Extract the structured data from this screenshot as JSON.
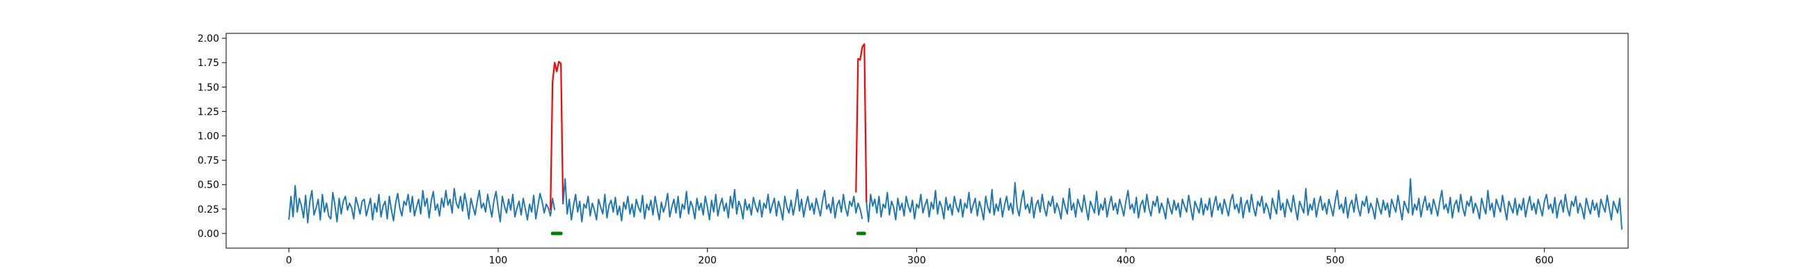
{
  "chart_data": {
    "type": "line",
    "title": "",
    "xlabel": "",
    "ylabel": "",
    "xlim": [
      -30,
      640
    ],
    "ylim": [
      -0.15,
      2.05
    ],
    "grid": false,
    "xticks": [
      0,
      100,
      200,
      300,
      400,
      500,
      600
    ],
    "xtick_labels": [
      "0",
      "100",
      "200",
      "300",
      "400",
      "500",
      "600"
    ],
    "yticks": [
      0.0,
      0.25,
      0.5,
      0.75,
      1.0,
      1.25,
      1.5,
      1.75,
      2.0
    ],
    "ytick_labels": [
      "0.00",
      "0.25",
      "0.50",
      "0.75",
      "1.00",
      "1.25",
      "1.50",
      "1.75",
      "2.00"
    ],
    "series": [
      {
        "role": "signal",
        "color": "#1f77b4",
        "x_start": 0,
        "x_step": 1,
        "values": [
          0.14,
          0.38,
          0.17,
          0.49,
          0.22,
          0.36,
          0.28,
          0.16,
          0.39,
          0.11,
          0.33,
          0.44,
          0.19,
          0.26,
          0.35,
          0.14,
          0.4,
          0.22,
          0.31,
          0.18,
          0.15,
          0.42,
          0.29,
          0.12,
          0.36,
          0.2,
          0.33,
          0.38,
          0.24,
          0.31,
          0.26,
          0.15,
          0.37,
          0.29,
          0.2,
          0.33,
          0.35,
          0.18,
          0.27,
          0.36,
          0.14,
          0.31,
          0.22,
          0.4,
          0.17,
          0.28,
          0.33,
          0.15,
          0.38,
          0.24,
          0.13,
          0.31,
          0.41,
          0.26,
          0.18,
          0.33,
          0.29,
          0.4,
          0.22,
          0.38,
          0.18,
          0.27,
          0.35,
          0.2,
          0.44,
          0.28,
          0.36,
          0.16,
          0.33,
          0.43,
          0.24,
          0.3,
          0.18,
          0.36,
          0.27,
          0.44,
          0.29,
          0.35,
          0.21,
          0.46,
          0.31,
          0.26,
          0.38,
          0.23,
          0.41,
          0.3,
          0.15,
          0.36,
          0.27,
          0.19,
          0.33,
          0.44,
          0.26,
          0.31,
          0.22,
          0.4,
          0.28,
          0.17,
          0.34,
          0.43,
          0.26,
          0.12,
          0.38,
          0.28,
          0.21,
          0.35,
          0.24,
          0.4,
          0.17,
          0.26,
          0.33,
          0.19,
          0.36,
          0.25,
          0.14,
          0.3,
          0.22,
          0.39,
          0.15,
          0.28,
          0.41,
          0.33,
          0.21,
          0.3,
          0.26,
          0.18,
          0.36,
          0.24
        ],
        "segments_note": null
      }
    ],
    "segments": [
      {
        "role": "signal",
        "color": "#1f77b4",
        "x_start": 0,
        "x_step": 1,
        "values": [
          0.14,
          0.38,
          0.17,
          0.49,
          0.22,
          0.36,
          0.28,
          0.16,
          0.39,
          0.11,
          0.33,
          0.44,
          0.19,
          0.26,
          0.35,
          0.14,
          0.4,
          0.22,
          0.31,
          0.18,
          0.15,
          0.42,
          0.29,
          0.12,
          0.36,
          0.2,
          0.33,
          0.38,
          0.24,
          0.31,
          0.26,
          0.15,
          0.37,
          0.29,
          0.2,
          0.33,
          0.35,
          0.18,
          0.27,
          0.36,
          0.14,
          0.31,
          0.22,
          0.4,
          0.17,
          0.28,
          0.33,
          0.15,
          0.38,
          0.24,
          0.13,
          0.31,
          0.41,
          0.26,
          0.18,
          0.33,
          0.29,
          0.4,
          0.22,
          0.38,
          0.18,
          0.27,
          0.35,
          0.2,
          0.44,
          0.28,
          0.36,
          0.16,
          0.33,
          0.43,
          0.24,
          0.3,
          0.18,
          0.36,
          0.27,
          0.44,
          0.29,
          0.35,
          0.21,
          0.46,
          0.31,
          0.26,
          0.38,
          0.23,
          0.41,
          0.3,
          0.15,
          0.36,
          0.27,
          0.19,
          0.33,
          0.44,
          0.26,
          0.31,
          0.22,
          0.4,
          0.28,
          0.17,
          0.34,
          0.43,
          0.26,
          0.12,
          0.38,
          0.28,
          0.21,
          0.35,
          0.24,
          0.4,
          0.17,
          0.26,
          0.33,
          0.19,
          0.36,
          0.25,
          0.14,
          0.3,
          0.22,
          0.39,
          0.15,
          0.28,
          0.41,
          0.33,
          0.21,
          0.3,
          0.26,
          0.18,
          0.36,
          0.24
        ]
      },
      {
        "role": "anomaly",
        "color": "#ff0000",
        "x_start": 125,
        "x_step": 1,
        "values": [
          0.24,
          1.55,
          1.75,
          1.66,
          1.76,
          1.74,
          0.3
        ]
      },
      {
        "role": "signal",
        "color": "#1f77b4",
        "x_start": 131,
        "x_step": 1,
        "values": [
          0.3,
          0.56,
          0.2,
          0.35,
          0.14,
          0.28,
          0.4,
          0.22,
          0.33,
          0.12,
          0.3,
          0.26,
          0.38,
          0.18,
          0.31,
          0.24,
          0.14,
          0.35,
          0.27,
          0.2,
          0.4,
          0.16,
          0.29,
          0.34,
          0.22,
          0.37,
          0.19,
          0.28,
          0.13,
          0.32,
          0.25,
          0.38,
          0.2,
          0.3,
          0.17,
          0.35,
          0.27,
          0.22,
          0.39,
          0.15,
          0.3,
          0.24,
          0.34,
          0.19,
          0.38,
          0.26,
          0.14,
          0.32,
          0.22,
          0.29,
          0.41,
          0.17,
          0.27,
          0.35,
          0.21,
          0.38,
          0.16,
          0.3,
          0.25,
          0.43,
          0.2,
          0.33,
          0.27,
          0.15,
          0.36,
          0.24,
          0.31,
          0.19,
          0.38,
          0.27,
          0.14,
          0.34,
          0.22,
          0.4,
          0.18,
          0.29,
          0.36,
          0.23,
          0.31,
          0.16,
          0.38,
          0.26,
          0.45,
          0.2,
          0.33,
          0.27,
          0.15,
          0.35,
          0.24,
          0.3,
          0.19,
          0.37,
          0.28,
          0.22,
          0.34,
          0.17,
          0.31,
          0.26,
          0.4,
          0.21,
          0.29,
          0.36,
          0.18,
          0.33,
          0.25,
          0.14,
          0.38,
          0.27,
          0.21,
          0.34,
          0.19,
          0.3,
          0.45,
          0.23,
          0.35,
          0.17,
          0.29,
          0.38,
          0.24,
          0.31,
          0.2,
          0.36,
          0.27,
          0.18,
          0.33,
          0.44,
          0.25,
          0.3,
          0.21,
          0.37,
          0.16,
          0.29,
          0.34,
          0.22,
          0.4,
          0.26,
          0.18,
          0.33,
          0.28,
          0.38,
          0.21,
          0.31,
          0.25,
          0.15
        ]
      },
      {
        "role": "anomaly",
        "color": "#ff0000",
        "x_start": 271,
        "x_step": 1,
        "values": [
          0.42,
          1.79,
          1.78,
          1.91,
          1.94,
          0.32
        ]
      },
      {
        "role": "signal",
        "color": "#1f77b4",
        "x_start": 276,
        "x_step": 1,
        "values": [
          0.32,
          0.12,
          0.4,
          0.28,
          0.35,
          0.21,
          0.38,
          0.17,
          0.3,
          0.26,
          0.42,
          0.19,
          0.33,
          0.27,
          0.14,
          0.36,
          0.24,
          0.31,
          0.18,
          0.38,
          0.28,
          0.22,
          0.34,
          0.15,
          0.3,
          0.26,
          0.4,
          0.21,
          0.29,
          0.35,
          0.17,
          0.32,
          0.25,
          0.44,
          0.2,
          0.33,
          0.27,
          0.15,
          0.37,
          0.24,
          0.3,
          0.19,
          0.38,
          0.28,
          0.22,
          0.35,
          0.17,
          0.31,
          0.26,
          0.42,
          0.21,
          0.29,
          0.36,
          0.18,
          0.33,
          0.25,
          0.14,
          0.38,
          0.27,
          0.21,
          0.45,
          0.19,
          0.3,
          0.23,
          0.36,
          0.17,
          0.29,
          0.38,
          0.24,
          0.31,
          0.2,
          0.52,
          0.27,
          0.18,
          0.33,
          0.44,
          0.25,
          0.3,
          0.21,
          0.37,
          0.16,
          0.29,
          0.34,
          0.22,
          0.4,
          0.26,
          0.18,
          0.33,
          0.28,
          0.38,
          0.21,
          0.31,
          0.25,
          0.15,
          0.36,
          0.27,
          0.2,
          0.46,
          0.24,
          0.31,
          0.17,
          0.35,
          0.28,
          0.22,
          0.39,
          0.26,
          0.14,
          0.33,
          0.27,
          0.21,
          0.43,
          0.19,
          0.3,
          0.24,
          0.36,
          0.17,
          0.29,
          0.38,
          0.24,
          0.31,
          0.2,
          0.35,
          0.27,
          0.18,
          0.33,
          0.44,
          0.25,
          0.3,
          0.21,
          0.37,
          0.16,
          0.29,
          0.34,
          0.22,
          0.4,
          0.26,
          0.18,
          0.33,
          0.28,
          0.38,
          0.21,
          0.31,
          0.25,
          0.15,
          0.36,
          0.27,
          0.2,
          0.34,
          0.24,
          0.31,
          0.17,
          0.35,
          0.28,
          0.22,
          0.39,
          0.26,
          0.14,
          0.33,
          0.27,
          0.21,
          0.36,
          0.19,
          0.3,
          0.24,
          0.36,
          0.17,
          0.29,
          0.38,
          0.24,
          0.31,
          0.2,
          0.35,
          0.27,
          0.18,
          0.33,
          0.4,
          0.25,
          0.3,
          0.21,
          0.37,
          0.16,
          0.29,
          0.34,
          0.22,
          0.4,
          0.26,
          0.18,
          0.33,
          0.28,
          0.38,
          0.21,
          0.31,
          0.25,
          0.15,
          0.36,
          0.27,
          0.2,
          0.44,
          0.24,
          0.31,
          0.17,
          0.35,
          0.28,
          0.22,
          0.39,
          0.26,
          0.14,
          0.33,
          0.27,
          0.21,
          0.46,
          0.19,
          0.3,
          0.24,
          0.36,
          0.17,
          0.29,
          0.38,
          0.24,
          0.31,
          0.2,
          0.35,
          0.27,
          0.18,
          0.33,
          0.44,
          0.25,
          0.3,
          0.21,
          0.37,
          0.16,
          0.29,
          0.34,
          0.22,
          0.4,
          0.26,
          0.18,
          0.33,
          0.28,
          0.38,
          0.21,
          0.31,
          0.25,
          0.15,
          0.36,
          0.27,
          0.2,
          0.34,
          0.24,
          0.31,
          0.17,
          0.35,
          0.28,
          0.22,
          0.39,
          0.26,
          0.14,
          0.33,
          0.27,
          0.21,
          0.56,
          0.19,
          0.3,
          0.24,
          0.36,
          0.17,
          0.29,
          0.38,
          0.24,
          0.31,
          0.2,
          0.35,
          0.27,
          0.18,
          0.33,
          0.44,
          0.25,
          0.3,
          0.21,
          0.37,
          0.16,
          0.29,
          0.34,
          0.22,
          0.4,
          0.26,
          0.18,
          0.33,
          0.28,
          0.38,
          0.21,
          0.31,
          0.25,
          0.15,
          0.36,
          0.27,
          0.2,
          0.44,
          0.24,
          0.31,
          0.17,
          0.35,
          0.28,
          0.22,
          0.39,
          0.26,
          0.14,
          0.33,
          0.27,
          0.21,
          0.36,
          0.19,
          0.3,
          0.24,
          0.36,
          0.17,
          0.29,
          0.38,
          0.24,
          0.31,
          0.2,
          0.35,
          0.27,
          0.18,
          0.33,
          0.4,
          0.25,
          0.3,
          0.21,
          0.37,
          0.16,
          0.29,
          0.34,
          0.22,
          0.4,
          0.26,
          0.18,
          0.33,
          0.28,
          0.38,
          0.21,
          0.31,
          0.25,
          0.15,
          0.36,
          0.27,
          0.2,
          0.34,
          0.24,
          0.31,
          0.17,
          0.35,
          0.28,
          0.22,
          0.39,
          0.26,
          0.14,
          0.33,
          0.27,
          0.21,
          0.36,
          0.04
        ]
      }
    ],
    "markers": [
      {
        "role": "anomaly-window",
        "color": "#008000",
        "x0": 126,
        "x1": 130,
        "y": 0.0
      },
      {
        "role": "anomaly-window",
        "color": "#008000",
        "x0": 272,
        "x1": 275,
        "y": 0.0
      }
    ]
  }
}
